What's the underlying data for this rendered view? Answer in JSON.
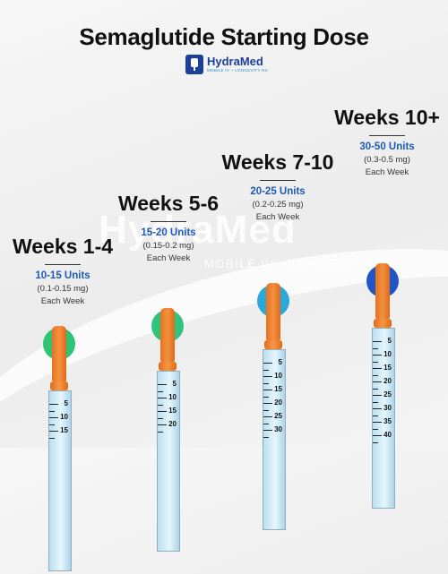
{
  "title": "Semaglutide Starting Dose",
  "logo": {
    "name": "HydraMed",
    "tagline": "MOBILE IV + LONGEVITY RX"
  },
  "watermark": {
    "name": "HydraMed",
    "tagline": "MOBILE IV + LONGEVITY RX"
  },
  "doses": [
    {
      "week": "Weeks 1-4",
      "units": "10-15 Units",
      "mg": "(0.1-0.15 mg)",
      "freq": "Each Week",
      "cap_color": "#2fc473",
      "scale": [
        "5",
        "10",
        "15"
      ]
    },
    {
      "week": "Weeks 5-6",
      "units": "15-20 Units",
      "mg": "(0.15-0.2 mg)",
      "freq": "Each Week",
      "cap_color": "#2fc47e",
      "scale": [
        "5",
        "10",
        "15",
        "20"
      ]
    },
    {
      "week": "Weeks 7-10",
      "units": "20-25 Units",
      "mg": "(0.2-0.25 mg)",
      "freq": "Each Week",
      "cap_color": "#2aa8dc",
      "scale": [
        "5",
        "10",
        "15",
        "20",
        "25",
        "30"
      ]
    },
    {
      "week": "Weeks 10+",
      "units": "30-50 Units",
      "mg": "(0.3-0.5 mg)",
      "freq": "Each Week",
      "cap_color": "#1e55c9",
      "scale": [
        "5",
        "10",
        "15",
        "20",
        "25",
        "30",
        "35",
        "40"
      ]
    }
  ]
}
